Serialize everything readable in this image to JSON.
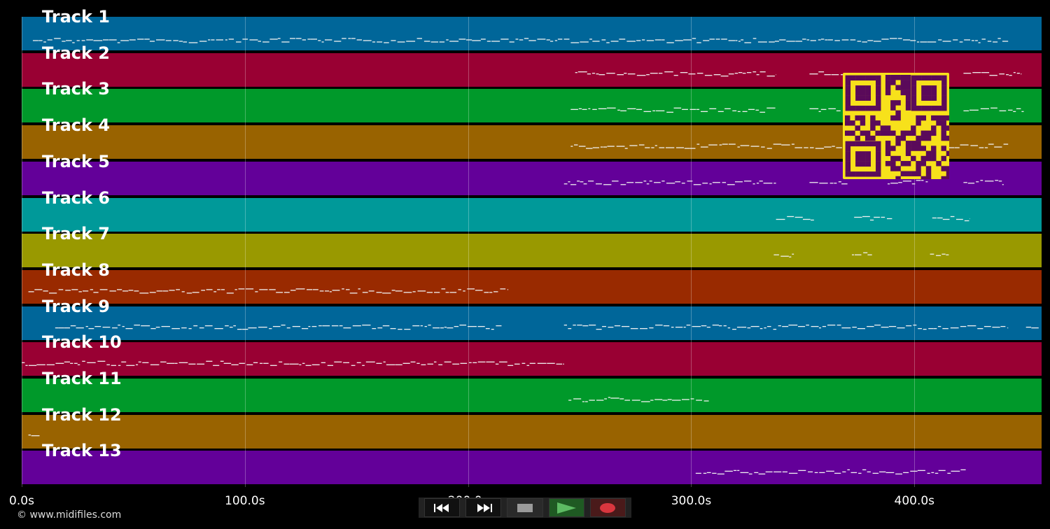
{
  "tracks": [
    {
      "label": "Track 1",
      "color": "#006699"
    },
    {
      "label": "Track 2",
      "color": "#990033"
    },
    {
      "label": "Track 3",
      "color": "#00992a"
    },
    {
      "label": "Track 4",
      "color": "#996300"
    },
    {
      "label": "Track 5",
      "color": "#630099"
    },
    {
      "label": "Track 6",
      "color": "#009999"
    },
    {
      "label": "Track 7",
      "color": "#999900"
    },
    {
      "label": "Track 8",
      "color": "#992a00"
    },
    {
      "label": "Track 9",
      "color": "#006699"
    },
    {
      "label": "Track 10",
      "color": "#990033"
    },
    {
      "label": "Track 11",
      "color": "#00992a"
    },
    {
      "label": "Track 12",
      "color": "#996300"
    },
    {
      "label": "Track 13",
      "color": "#630099"
    }
  ],
  "timeline": {
    "ticks": [
      "0.0s",
      "100.0s",
      "200.0s",
      "300.0s",
      "400.0s"
    ],
    "tick_values": [
      0,
      100,
      200,
      300,
      400
    ],
    "duration": 457
  },
  "controls": {
    "rewind_icon": "rewind-icon",
    "forward_icon": "fast-forward-icon",
    "stop_icon": "stop-icon",
    "play_icon": "play-icon",
    "record_icon": "record-icon",
    "colors": {
      "background": "#111111",
      "stop": "#9a9a9a",
      "play": "#5dbb63",
      "record": "#d9363e"
    }
  },
  "copyright": "© www.midifiles.com",
  "qr_code": {
    "color": "#f7e11b",
    "module_color": "#5a0a5a"
  }
}
